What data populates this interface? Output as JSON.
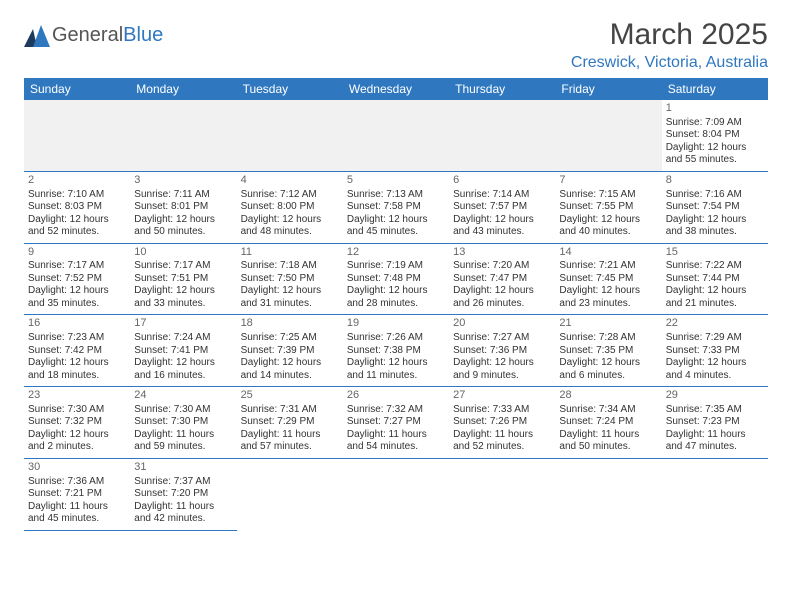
{
  "brand": {
    "part1": "General",
    "part2": "Blue"
  },
  "header": {
    "title": "March 2025",
    "location": "Creswick, Victoria, Australia"
  },
  "colors": {
    "accent": "#2f78c0",
    "text": "#333",
    "muted": "#666",
    "headerbg": "#f1f1f1"
  },
  "weekdays": [
    "Sunday",
    "Monday",
    "Tuesday",
    "Wednesday",
    "Thursday",
    "Friday",
    "Saturday"
  ],
  "days": {
    "1": {
      "sunrise": "7:09 AM",
      "sunset": "8:04 PM",
      "daylight": "12 hours and 55 minutes."
    },
    "2": {
      "sunrise": "7:10 AM",
      "sunset": "8:03 PM",
      "daylight": "12 hours and 52 minutes."
    },
    "3": {
      "sunrise": "7:11 AM",
      "sunset": "8:01 PM",
      "daylight": "12 hours and 50 minutes."
    },
    "4": {
      "sunrise": "7:12 AM",
      "sunset": "8:00 PM",
      "daylight": "12 hours and 48 minutes."
    },
    "5": {
      "sunrise": "7:13 AM",
      "sunset": "7:58 PM",
      "daylight": "12 hours and 45 minutes."
    },
    "6": {
      "sunrise": "7:14 AM",
      "sunset": "7:57 PM",
      "daylight": "12 hours and 43 minutes."
    },
    "7": {
      "sunrise": "7:15 AM",
      "sunset": "7:55 PM",
      "daylight": "12 hours and 40 minutes."
    },
    "8": {
      "sunrise": "7:16 AM",
      "sunset": "7:54 PM",
      "daylight": "12 hours and 38 minutes."
    },
    "9": {
      "sunrise": "7:17 AM",
      "sunset": "7:52 PM",
      "daylight": "12 hours and 35 minutes."
    },
    "10": {
      "sunrise": "7:17 AM",
      "sunset": "7:51 PM",
      "daylight": "12 hours and 33 minutes."
    },
    "11": {
      "sunrise": "7:18 AM",
      "sunset": "7:50 PM",
      "daylight": "12 hours and 31 minutes."
    },
    "12": {
      "sunrise": "7:19 AM",
      "sunset": "7:48 PM",
      "daylight": "12 hours and 28 minutes."
    },
    "13": {
      "sunrise": "7:20 AM",
      "sunset": "7:47 PM",
      "daylight": "12 hours and 26 minutes."
    },
    "14": {
      "sunrise": "7:21 AM",
      "sunset": "7:45 PM",
      "daylight": "12 hours and 23 minutes."
    },
    "15": {
      "sunrise": "7:22 AM",
      "sunset": "7:44 PM",
      "daylight": "12 hours and 21 minutes."
    },
    "16": {
      "sunrise": "7:23 AM",
      "sunset": "7:42 PM",
      "daylight": "12 hours and 18 minutes."
    },
    "17": {
      "sunrise": "7:24 AM",
      "sunset": "7:41 PM",
      "daylight": "12 hours and 16 minutes."
    },
    "18": {
      "sunrise": "7:25 AM",
      "sunset": "7:39 PM",
      "daylight": "12 hours and 14 minutes."
    },
    "19": {
      "sunrise": "7:26 AM",
      "sunset": "7:38 PM",
      "daylight": "12 hours and 11 minutes."
    },
    "20": {
      "sunrise": "7:27 AM",
      "sunset": "7:36 PM",
      "daylight": "12 hours and 9 minutes."
    },
    "21": {
      "sunrise": "7:28 AM",
      "sunset": "7:35 PM",
      "daylight": "12 hours and 6 minutes."
    },
    "22": {
      "sunrise": "7:29 AM",
      "sunset": "7:33 PM",
      "daylight": "12 hours and 4 minutes."
    },
    "23": {
      "sunrise": "7:30 AM",
      "sunset": "7:32 PM",
      "daylight": "12 hours and 2 minutes."
    },
    "24": {
      "sunrise": "7:30 AM",
      "sunset": "7:30 PM",
      "daylight": "11 hours and 59 minutes."
    },
    "25": {
      "sunrise": "7:31 AM",
      "sunset": "7:29 PM",
      "daylight": "11 hours and 57 minutes."
    },
    "26": {
      "sunrise": "7:32 AM",
      "sunset": "7:27 PM",
      "daylight": "11 hours and 54 minutes."
    },
    "27": {
      "sunrise": "7:33 AM",
      "sunset": "7:26 PM",
      "daylight": "11 hours and 52 minutes."
    },
    "28": {
      "sunrise": "7:34 AM",
      "sunset": "7:24 PM",
      "daylight": "11 hours and 50 minutes."
    },
    "29": {
      "sunrise": "7:35 AM",
      "sunset": "7:23 PM",
      "daylight": "11 hours and 47 minutes."
    },
    "30": {
      "sunrise": "7:36 AM",
      "sunset": "7:21 PM",
      "daylight": "11 hours and 45 minutes."
    },
    "31": {
      "sunrise": "7:37 AM",
      "sunset": "7:20 PM",
      "daylight": "11 hours and 42 minutes."
    }
  },
  "layout": {
    "startWeekday": 6,
    "numDays": 31
  }
}
